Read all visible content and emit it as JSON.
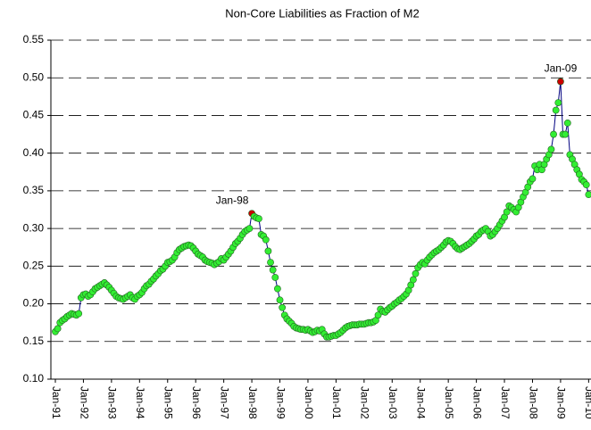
{
  "chart_data": {
    "type": "line",
    "title": "Non-Core Liabilities as Fraction of M2",
    "categories": [
      "Jan-91",
      null,
      null,
      null,
      null,
      null,
      null,
      null,
      null,
      null,
      null,
      null,
      "Jan-92",
      null,
      null,
      null,
      null,
      null,
      null,
      null,
      null,
      null,
      null,
      null,
      "Jan-93",
      null,
      null,
      null,
      null,
      null,
      null,
      null,
      null,
      null,
      null,
      null,
      "Jan-94",
      null,
      null,
      null,
      null,
      null,
      null,
      null,
      null,
      null,
      null,
      null,
      "Jan-95",
      null,
      null,
      null,
      null,
      null,
      null,
      null,
      null,
      null,
      null,
      null,
      "Jan-96",
      null,
      null,
      null,
      null,
      null,
      null,
      null,
      null,
      null,
      null,
      null,
      "Jan-97",
      null,
      null,
      null,
      null,
      null,
      null,
      null,
      null,
      null,
      null,
      null,
      "Jan-98",
      null,
      null,
      null,
      null,
      null,
      null,
      null,
      null,
      null,
      null,
      null,
      "Jan-99",
      null,
      null,
      null,
      null,
      null,
      null,
      null,
      null,
      null,
      null,
      null,
      "Jan-00",
      null,
      null,
      null,
      null,
      null,
      null,
      null,
      null,
      null,
      null,
      null,
      "Jan-01",
      null,
      null,
      null,
      null,
      null,
      null,
      null,
      null,
      null,
      null,
      null,
      "Jan-02",
      null,
      null,
      null,
      null,
      null,
      null,
      null,
      null,
      null,
      null,
      null,
      "Jan-03",
      null,
      null,
      null,
      null,
      null,
      null,
      null,
      null,
      null,
      null,
      null,
      "Jan-04",
      null,
      null,
      null,
      null,
      null,
      null,
      null,
      null,
      null,
      null,
      null,
      "Jan-05",
      null,
      null,
      null,
      null,
      null,
      null,
      null,
      null,
      null,
      null,
      null,
      "Jan-06",
      null,
      null,
      null,
      null,
      null,
      null,
      null,
      null,
      null,
      null,
      null,
      "Jan-07",
      null,
      null,
      null,
      null,
      null,
      null,
      null,
      null,
      null,
      null,
      null,
      "Jan-08",
      null,
      null,
      null,
      null,
      null,
      null,
      null,
      null,
      null,
      null,
      null,
      "Jan-09",
      null,
      null,
      null,
      null,
      null,
      null,
      null,
      null,
      null,
      null,
      null,
      "Jan-10"
    ],
    "values": [
      0.163,
      0.167,
      0.175,
      0.178,
      0.18,
      0.183,
      0.185,
      0.187,
      0.186,
      0.185,
      0.187,
      0.208,
      0.212,
      0.213,
      0.21,
      0.212,
      0.216,
      0.22,
      0.222,
      0.224,
      0.226,
      0.228,
      0.225,
      0.222,
      0.218,
      0.214,
      0.21,
      0.208,
      0.207,
      0.206,
      0.208,
      0.21,
      0.212,
      0.208,
      0.206,
      0.21,
      0.212,
      0.215,
      0.22,
      0.224,
      0.226,
      0.23,
      0.233,
      0.237,
      0.24,
      0.244,
      0.246,
      0.25,
      0.255,
      0.256,
      0.258,
      0.262,
      0.268,
      0.272,
      0.274,
      0.276,
      0.277,
      0.278,
      0.277,
      0.274,
      0.27,
      0.266,
      0.264,
      0.262,
      0.258,
      0.256,
      0.255,
      0.254,
      0.252,
      0.254,
      0.256,
      0.26,
      0.258,
      0.262,
      0.266,
      0.27,
      0.275,
      0.28,
      0.283,
      0.287,
      0.292,
      0.296,
      0.298,
      0.3,
      0.32,
      0.316,
      0.314,
      0.313,
      0.292,
      0.29,
      0.285,
      0.27,
      0.255,
      0.245,
      0.235,
      0.22,
      0.205,
      0.195,
      0.185,
      0.18,
      0.177,
      0.174,
      0.17,
      0.168,
      0.167,
      0.166,
      0.166,
      0.165,
      0.166,
      0.164,
      0.162,
      0.163,
      0.165,
      0.164,
      0.166,
      0.16,
      0.156,
      0.156,
      0.157,
      0.158,
      0.158,
      0.16,
      0.162,
      0.165,
      0.168,
      0.17,
      0.171,
      0.172,
      0.172,
      0.172,
      0.173,
      0.173,
      0.173,
      0.174,
      0.175,
      0.175,
      0.176,
      0.178,
      0.185,
      0.193,
      0.19,
      0.189,
      0.192,
      0.195,
      0.197,
      0.2,
      0.202,
      0.205,
      0.207,
      0.21,
      0.213,
      0.218,
      0.225,
      0.232,
      0.24,
      0.248,
      0.252,
      0.255,
      0.253,
      0.258,
      0.262,
      0.265,
      0.268,
      0.27,
      0.272,
      0.275,
      0.278,
      0.282,
      0.284,
      0.283,
      0.28,
      0.276,
      0.273,
      0.272,
      0.274,
      0.276,
      0.278,
      0.28,
      0.283,
      0.286,
      0.29,
      0.292,
      0.296,
      0.298,
      0.3,
      0.296,
      0.29,
      0.292,
      0.296,
      0.3,
      0.305,
      0.31,
      0.315,
      0.322,
      0.33,
      0.328,
      0.325,
      0.322,
      0.328,
      0.335,
      0.342,
      0.348,
      0.355,
      0.362,
      0.366,
      0.383,
      0.378,
      0.385,
      0.378,
      0.385,
      0.392,
      0.398,
      0.405,
      0.425,
      0.457,
      0.467,
      0.495,
      0.425,
      0.425,
      0.44,
      0.398,
      0.392,
      0.385,
      0.378,
      0.372,
      0.365,
      0.362,
      0.358,
      0.345
    ],
    "color": "#000080",
    "marker_color": "#33ee33",
    "highlights": [
      {
        "label": "Jan-98",
        "index": 84,
        "color": "#cc0000"
      },
      {
        "label": "Jan-09",
        "index": 216,
        "color": "#cc0000"
      }
    ],
    "ylim": [
      0.1,
      0.55
    ],
    "yticks": [
      {
        "value": 0.1,
        "label": "0.10"
      },
      0.15,
      {
        "value": 0.2,
        "label": "0.20"
      },
      0.25,
      {
        "value": 0.3,
        "label": "0.30"
      },
      0.35,
      {
        "value": 0.4,
        "label": "0.40"
      },
      0.45,
      {
        "value": 0.5,
        "label": "0.50"
      },
      0.55
    ],
    "grid": true
  }
}
